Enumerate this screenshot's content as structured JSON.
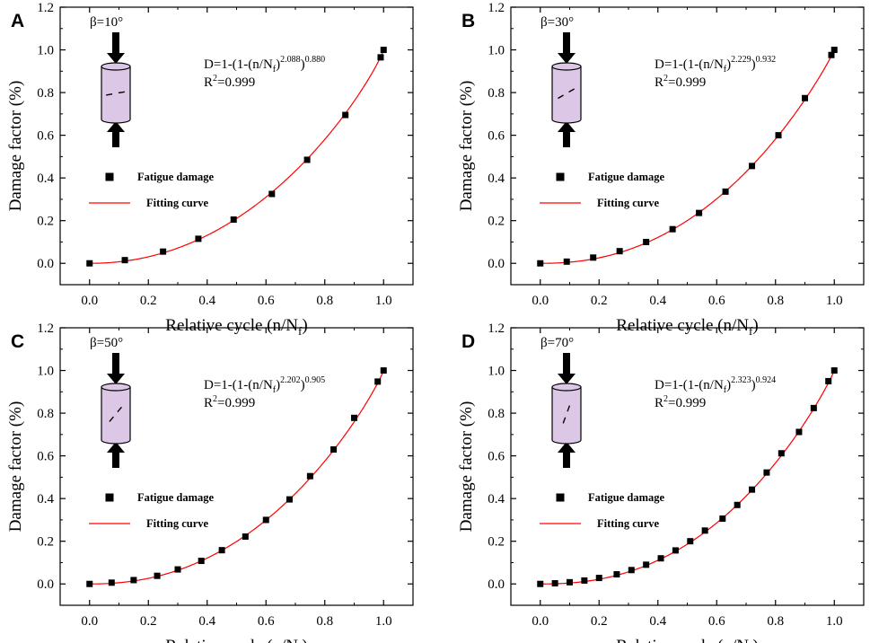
{
  "colors": {
    "axis": "#000000",
    "fit_curve": "#ff0000",
    "marker": "#000000",
    "specimen_fill": "#dcc8e6",
    "specimen_stroke": "#000000"
  },
  "chart_data": [
    {
      "panel_label": "A",
      "type": "scatter",
      "angle_label": "β=10°",
      "equation": {
        "base": "D=1-(1-(n/N",
        "sub": "f",
        "close": ")",
        "exp_a": "2.088",
        "mid": ")",
        "exp_b": "0.880"
      },
      "r2": {
        "prefix": "R",
        "sup": "2",
        "value": "=0.999"
      },
      "xlabel": {
        "text": "Relative cycle (n/N",
        "sub": "f",
        "close": ")"
      },
      "ylabel": "Damage factor (%)",
      "xlim": [
        -0.1,
        1.1
      ],
      "ylim": [
        -0.1,
        1.2
      ],
      "x_ticks": [
        "0.0",
        "0.2",
        "0.4",
        "0.6",
        "0.8",
        "1.0"
      ],
      "y_ticks": [
        "0.0",
        "0.2",
        "0.4",
        "0.6",
        "0.8",
        "1.0",
        "1.2"
      ],
      "legend": {
        "marker_label": "Fatigue damage",
        "line_label": "Fitting curve"
      },
      "fit": {
        "a": 2.088,
        "b": 0.88
      },
      "series": [
        {
          "name": "Fatigue damage",
          "x": [
            0.0,
            0.12,
            0.25,
            0.37,
            0.49,
            0.62,
            0.74,
            0.87,
            0.99,
            1.0
          ],
          "y": [
            0.0,
            0.015,
            0.055,
            0.115,
            0.205,
            0.325,
            0.485,
            0.695,
            0.965,
            1.0
          ]
        }
      ],
      "crack_angle": 10
    },
    {
      "panel_label": "B",
      "type": "scatter",
      "angle_label": "β=30°",
      "equation": {
        "base": "D=1-(1-(n/N",
        "sub": "f",
        "close": ")",
        "exp_a": "2.229",
        "mid": ")",
        "exp_b": "0.932"
      },
      "r2": {
        "prefix": "R",
        "sup": "2",
        "value": "=0.999"
      },
      "xlabel": {
        "text": "Relative cycle (n/N",
        "sub": "f",
        "close": ")"
      },
      "ylabel": "Damage factor (%)",
      "xlim": [
        -0.1,
        1.1
      ],
      "ylim": [
        -0.1,
        1.2
      ],
      "x_ticks": [
        "0.0",
        "0.2",
        "0.4",
        "0.6",
        "0.8",
        "1.0"
      ],
      "y_ticks": [
        "0.0",
        "0.2",
        "0.4",
        "0.6",
        "0.8",
        "1.0",
        "1.2"
      ],
      "legend": {
        "marker_label": "Fatigue damage",
        "line_label": "Fitting curve"
      },
      "fit": {
        "a": 2.229,
        "b": 0.932
      },
      "series": [
        {
          "name": "Fatigue damage",
          "x": [
            0.0,
            0.09,
            0.18,
            0.27,
            0.36,
            0.45,
            0.54,
            0.63,
            0.72,
            0.81,
            0.9,
            0.99,
            1.0
          ],
          "y": [
            0.0,
            0.008,
            0.027,
            0.057,
            0.1,
            0.16,
            0.236,
            0.336,
            0.456,
            0.6,
            0.774,
            0.976,
            1.0
          ]
        }
      ],
      "crack_angle": 30
    },
    {
      "panel_label": "C",
      "type": "scatter",
      "angle_label": "β=50°",
      "equation": {
        "base": "D=1-(1-(n/N",
        "sub": "f",
        "close": ")",
        "exp_a": "2.202",
        "mid": ")",
        "exp_b": "0.905"
      },
      "r2": {
        "prefix": "R",
        "sup": "2",
        "value": "=0.999"
      },
      "xlabel": {
        "text": "Relative cycle (n/N",
        "sub": "f",
        "close": ")"
      },
      "ylabel": "Damage factor (%)",
      "xlim": [
        -0.1,
        1.1
      ],
      "ylim": [
        -0.1,
        1.2
      ],
      "x_ticks": [
        "0.0",
        "0.2",
        "0.4",
        "0.6",
        "0.8",
        "1.0"
      ],
      "y_ticks": [
        "0.0",
        "0.2",
        "0.4",
        "0.6",
        "0.8",
        "1.0",
        "1.2"
      ],
      "legend": {
        "marker_label": "Fatigue damage",
        "line_label": "Fitting curve"
      },
      "fit": {
        "a": 2.202,
        "b": 0.905
      },
      "series": [
        {
          "name": "Fatigue damage",
          "x": [
            0.0,
            0.075,
            0.15,
            0.23,
            0.3,
            0.38,
            0.45,
            0.53,
            0.6,
            0.68,
            0.75,
            0.83,
            0.9,
            0.98,
            1.0
          ],
          "y": [
            0.0,
            0.006,
            0.018,
            0.038,
            0.068,
            0.108,
            0.158,
            0.222,
            0.3,
            0.396,
            0.505,
            0.63,
            0.778,
            0.948,
            1.0
          ]
        }
      ],
      "crack_angle": 50
    },
    {
      "panel_label": "D",
      "type": "scatter",
      "angle_label": "β=70°",
      "equation": {
        "base": "D=1-(1-(n/N",
        "sub": "f",
        "close": ")",
        "exp_a": "2.323",
        "mid": ")",
        "exp_b": "0.924"
      },
      "r2": {
        "prefix": "R",
        "sup": "2",
        "value": "=0.999"
      },
      "xlabel": {
        "text": "Relative cycle (n/N",
        "sub": "f",
        "close": ")"
      },
      "ylabel": "Damage factor (%)",
      "xlim": [
        -0.1,
        1.1
      ],
      "ylim": [
        -0.1,
        1.2
      ],
      "x_ticks": [
        "0.0",
        "0.2",
        "0.4",
        "0.6",
        "0.8",
        "1.0"
      ],
      "y_ticks": [
        "0.0",
        "0.2",
        "0.4",
        "0.6",
        "0.8",
        "1.0",
        "1.2"
      ],
      "legend": {
        "marker_label": "Fatigue damage",
        "line_label": "Fitting curve"
      },
      "fit": {
        "a": 2.323,
        "b": 0.924
      },
      "series": [
        {
          "name": "Fatigue damage",
          "x": [
            0.0,
            0.05,
            0.1,
            0.15,
            0.2,
            0.26,
            0.31,
            0.36,
            0.41,
            0.46,
            0.51,
            0.56,
            0.62,
            0.67,
            0.72,
            0.77,
            0.82,
            0.88,
            0.93,
            0.98,
            1.0
          ],
          "y": [
            0.0,
            0.003,
            0.008,
            0.016,
            0.028,
            0.045,
            0.065,
            0.09,
            0.12,
            0.157,
            0.2,
            0.25,
            0.306,
            0.37,
            0.442,
            0.522,
            0.612,
            0.712,
            0.824,
            0.95,
            1.0
          ]
        }
      ],
      "crack_angle": 70
    }
  ]
}
